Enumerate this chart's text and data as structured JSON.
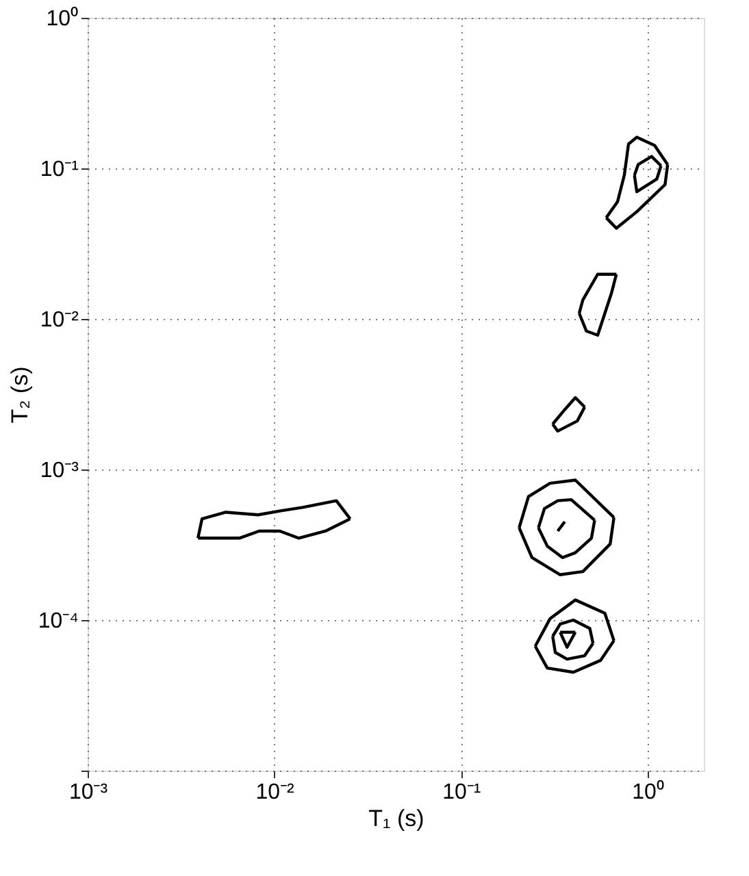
{
  "chart_data": {
    "type": "line",
    "xlabel": "T₁ (s)",
    "ylabel": "T₂ (s)",
    "log": "xy",
    "grid": true,
    "marker": "none",
    "line_style": "solid",
    "xlim": [
      0.001,
      2
    ],
    "ylim": [
      1e-05,
      1
    ],
    "xticks": [
      {
        "value": 0.001,
        "label": "10⁻³"
      },
      {
        "value": 0.01,
        "label": "10⁻²"
      },
      {
        "value": 0.1,
        "label": "10⁻¹"
      },
      {
        "value": 1,
        "label": "10⁰"
      }
    ],
    "yticks": [
      {
        "value": 1e-05,
        "label": null
      },
      {
        "value": 0.0001,
        "label": "10⁻⁴"
      },
      {
        "value": 0.001,
        "label": "10⁻³"
      },
      {
        "value": 0.01,
        "label": "10⁻²"
      },
      {
        "value": 0.1,
        "label": "10⁻¹"
      },
      {
        "value": 1,
        "label": "10⁰"
      }
    ],
    "series": [
      {
        "color": "#000000",
        "x": [
          0.6,
          0.69,
          0.75,
          0.79,
          0.875,
          1.09,
          1.28
        ],
        "values": [
          0.047,
          0.06,
          0.09,
          0.145,
          0.161,
          0.142,
          0.106
        ]
      },
      {
        "color": "#000000",
        "x": [
          0.6,
          0.68,
          0.875,
          1.24,
          1.28
        ],
        "values": [
          0.047,
          0.04,
          0.0515,
          0.078,
          0.106
        ]
      },
      {
        "color": "#000000",
        "x": [
          0.85,
          0.89,
          1.05,
          1.18
        ],
        "values": [
          0.09,
          0.106,
          0.12,
          0.104
        ]
      },
      {
        "color": "#000000",
        "x": [
          0.85,
          0.875,
          1.12,
          1.18
        ],
        "values": [
          0.09,
          0.07,
          0.085,
          0.104
        ]
      },
      {
        "color": "#000000",
        "x": [
          0.43,
          0.45,
          0.54,
          0.68
        ],
        "values": [
          0.0109,
          0.0134,
          0.0198,
          0.0198
        ]
      },
      {
        "color": "#000000",
        "x": [
          0.43,
          0.47,
          0.54,
          0.64,
          0.68
        ],
        "values": [
          0.0109,
          0.0083,
          0.0078,
          0.0148,
          0.0198
        ]
      },
      {
        "color": "#000000",
        "x": [
          0.31,
          0.36,
          0.41,
          0.46
        ],
        "values": [
          0.002,
          0.0025,
          0.003,
          0.0026
        ]
      },
      {
        "color": "#000000",
        "x": [
          0.31,
          0.33,
          0.42,
          0.46
        ],
        "values": [
          0.002,
          0.0018,
          0.0021,
          0.0026
        ]
      },
      {
        "color": "#000000",
        "x": [
          0.0039,
          0.0041,
          0.0055,
          0.0082,
          0.0107,
          0.0142,
          0.0215,
          0.0255
        ],
        "values": [
          0.00035,
          0.00047,
          0.00052,
          0.0005,
          0.00053,
          0.00056,
          0.00062,
          0.00047
        ]
      },
      {
        "color": "#000000",
        "x": [
          0.0039,
          0.0065,
          0.0083,
          0.0107,
          0.0135,
          0.0188,
          0.0255
        ],
        "values": [
          0.00035,
          0.00035,
          0.00039,
          0.00039,
          0.00035,
          0.00039,
          0.00047
        ]
      },
      {
        "color": "#000000",
        "x": [
          0.205,
          0.23,
          0.3,
          0.41,
          0.66
        ],
        "values": [
          0.00041,
          0.00066,
          0.00081,
          0.00085,
          0.00048
        ]
      },
      {
        "color": "#000000",
        "x": [
          0.205,
          0.24,
          0.34,
          0.45,
          0.63,
          0.66
        ],
        "values": [
          0.00041,
          0.00026,
          0.0002,
          0.00021,
          0.00032,
          0.00048
        ]
      },
      {
        "color": "#000000",
        "x": [
          0.26,
          0.28,
          0.33,
          0.39,
          0.52
        ],
        "values": [
          0.00041,
          0.00055,
          0.00062,
          0.00063,
          0.00046
        ]
      },
      {
        "color": "#000000",
        "x": [
          0.26,
          0.29,
          0.35,
          0.41,
          0.5,
          0.52
        ],
        "values": [
          0.00041,
          0.00031,
          0.00026,
          0.00028,
          0.00035,
          0.00046
        ]
      },
      {
        "color": "#000000",
        "x": [
          0.33,
          0.36
        ],
        "values": [
          0.00039,
          0.00045
        ]
      },
      {
        "color": "#000000",
        "x": [
          0.25,
          0.3,
          0.41,
          0.59,
          0.66
        ],
        "values": [
          6.7e-05,
          0.000102,
          0.000136,
          0.000111,
          7.3e-05
        ]
      },
      {
        "color": "#000000",
        "x": [
          0.25,
          0.29,
          0.4,
          0.56,
          0.66
        ],
        "values": [
          6.7e-05,
          4.8e-05,
          4.5e-05,
          5.4e-05,
          7.3e-05
        ]
      },
      {
        "color": "#000000",
        "x": [
          0.31,
          0.34,
          0.4,
          0.49,
          0.51
        ],
        "values": [
          7.8e-05,
          9.4e-05,
          0.0001,
          8.8e-05,
          7e-05
        ]
      },
      {
        "color": "#000000",
        "x": [
          0.31,
          0.32,
          0.37,
          0.46,
          0.51
        ],
        "values": [
          7.8e-05,
          6.1e-05,
          5.5e-05,
          5.8e-05,
          7e-05
        ]
      },
      {
        "color": "#000000",
        "x": [
          0.34,
          0.41
        ],
        "values": [
          8.3e-05,
          8.3e-05
        ]
      },
      {
        "color": "#000000",
        "x": [
          0.34,
          0.37,
          0.41
        ],
        "values": [
          8.3e-05,
          6.6e-05,
          8.3e-05
        ]
      }
    ]
  }
}
